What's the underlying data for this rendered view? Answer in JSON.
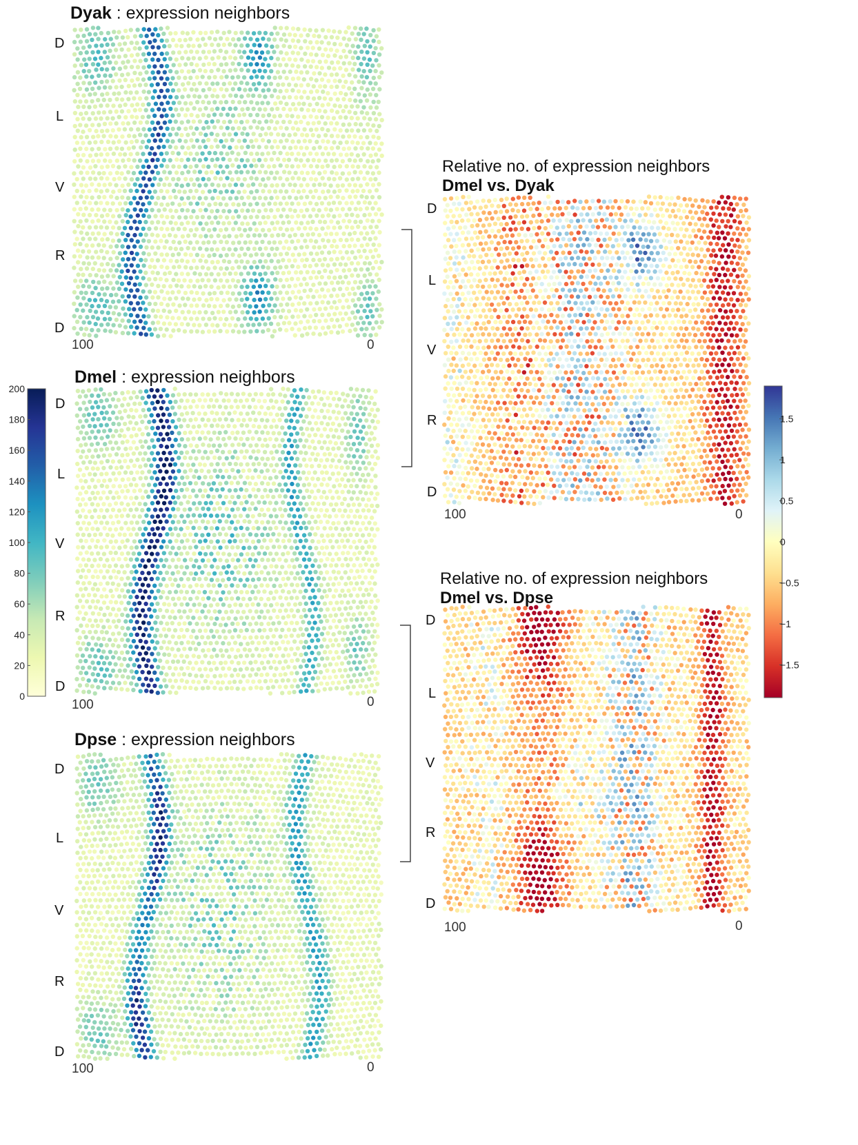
{
  "panels": [
    {
      "id": "dyak",
      "title_bold": "Dyak",
      "title_rest": " : expression neighbors"
    },
    {
      "id": "dmel",
      "title_bold": "Dmel",
      "title_rest": " : expression neighbors"
    },
    {
      "id": "dpse",
      "title_bold": "Dpse",
      "title_rest": " : expression neighbors"
    },
    {
      "id": "dmel_dyak",
      "title_line1": "Relative no. of expression neighbors",
      "title_line2": "Dmel vs. Dyak"
    },
    {
      "id": "dmel_dpse",
      "title_line1": "Relative no. of expression neighbors",
      "title_line2": "Dmel vs. Dpse"
    }
  ],
  "axis_labels": {
    "dv": [
      "D",
      "L",
      "V",
      "R",
      "D"
    ],
    "ap_left": "100",
    "ap_right": "0"
  },
  "colorbar_left": {
    "ticks": [
      "200",
      "180",
      "160",
      "140",
      "120",
      "100",
      "80",
      "60",
      "40",
      "20",
      "0"
    ],
    "min": 0,
    "max": 200,
    "palette": "YlGnBu"
  },
  "colorbar_right": {
    "ticks": [
      "1.5",
      "1",
      "0.5",
      "0",
      "−0.5",
      "−1",
      "−1.5"
    ],
    "min": -1.9,
    "max": 1.9,
    "palette": "RdYlBu"
  },
  "chart_data": [
    {
      "type": "scatter",
      "title": "Dyak : expression neighbors",
      "xlabel": "",
      "ylabel": "",
      "x_ticks": [
        "100",
        "0"
      ],
      "y_ticks": [
        "D",
        "L",
        "V",
        "R",
        "D"
      ],
      "color_range": [
        0,
        200
      ],
      "description_of_values": "anterior and posterior bands plus central patch up to ~180"
    },
    {
      "type": "scatter",
      "title": "Dmel : expression neighbors",
      "x_ticks": [
        "100",
        "0"
      ],
      "y_ticks": [
        "D",
        "L",
        "V",
        "R",
        "D"
      ],
      "color_range": [
        0,
        200
      ]
    },
    {
      "type": "scatter",
      "title": "Dpse : expression neighbors",
      "x_ticks": [
        "100",
        "0"
      ],
      "y_ticks": [
        "D",
        "L",
        "V",
        "R",
        "D"
      ],
      "color_range": [
        0,
        200
      ]
    },
    {
      "type": "scatter",
      "title": "Relative no. of expression neighbors Dmel vs. Dyak",
      "x_ticks": [
        "100",
        "0"
      ],
      "y_ticks": [
        "D",
        "L",
        "V",
        "R",
        "D"
      ],
      "color_range": [
        -1.9,
        1.9
      ]
    },
    {
      "type": "scatter",
      "title": "Relative no. of expression neighbors Dmel vs. Dpse",
      "x_ticks": [
        "100",
        "0"
      ],
      "y_ticks": [
        "D",
        "L",
        "V",
        "R",
        "D"
      ],
      "color_range": [
        -1.9,
        1.9
      ]
    }
  ]
}
